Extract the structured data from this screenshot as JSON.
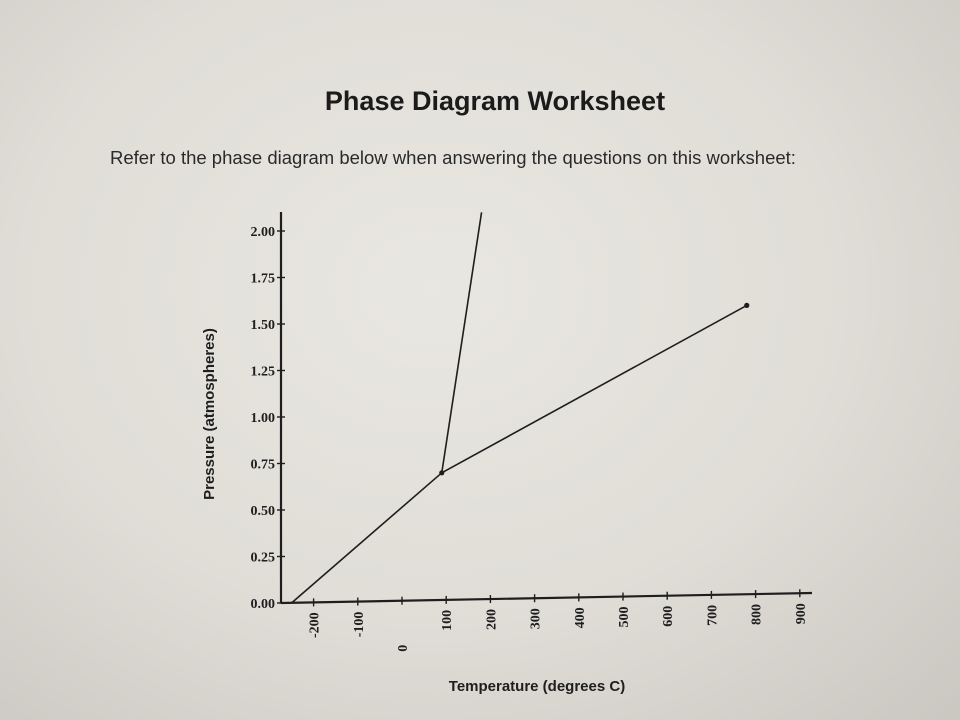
{
  "title": "Phase Diagram Worksheet",
  "intro": "Refer to the phase diagram below when answering the questions on this worksheet:",
  "colors": {
    "paper": "#e6e4de",
    "ink": "#1e1e1e"
  },
  "chart_data": {
    "type": "line",
    "xlabel": "Temperature (degrees C)",
    "ylabel": "Pressure (atmospheres)",
    "x_ticks": [
      "-200",
      "-100",
      "0",
      "100",
      "200",
      "300",
      "400",
      "500",
      "600",
      "700",
      "800",
      "900"
    ],
    "y_ticks": [
      "0.00",
      "0.25",
      "0.50",
      "0.75",
      "1.00",
      "1.25",
      "1.50",
      "1.75",
      "2.00"
    ],
    "xlim": [
      -250,
      900
    ],
    "ylim": [
      0,
      2.1
    ],
    "series": [
      {
        "points": [
          [
            -250,
            0.0
          ],
          [
            90,
            0.7
          ]
        ]
      },
      {
        "points": [
          [
            90,
            0.7
          ],
          [
            180,
            2.1
          ]
        ]
      },
      {
        "points": [
          [
            90,
            0.7
          ],
          [
            780,
            1.6
          ]
        ]
      }
    ],
    "marked_points": [
      [
        90,
        0.7
      ],
      [
        780,
        1.6
      ]
    ]
  }
}
